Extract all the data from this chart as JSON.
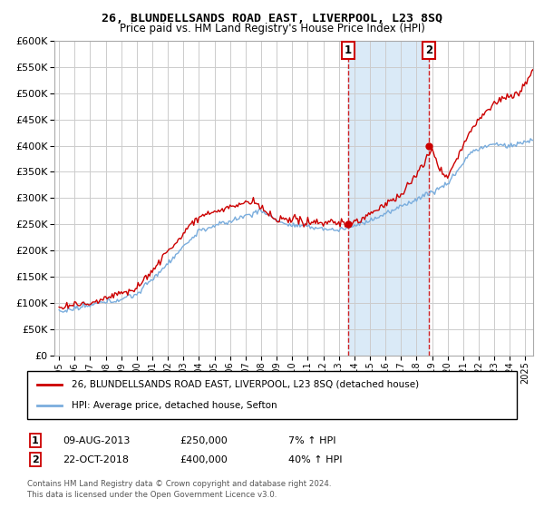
{
  "title": "26, BLUNDELLSANDS ROAD EAST, LIVERPOOL, L23 8SQ",
  "subtitle": "Price paid vs. HM Land Registry's House Price Index (HPI)",
  "legend_line1": "26, BLUNDELLSANDS ROAD EAST, LIVERPOOL, L23 8SQ (detached house)",
  "legend_line2": "HPI: Average price, detached house, Sefton",
  "annotation1_label": "1",
  "annotation1_date": "09-AUG-2013",
  "annotation1_price": "£250,000",
  "annotation1_hpi": "7% ↑ HPI",
  "annotation1_year": 2013.6,
  "annotation1_value": 250000,
  "annotation2_label": "2",
  "annotation2_date": "22-OCT-2018",
  "annotation2_price": "£400,000",
  "annotation2_hpi": "40% ↑ HPI",
  "annotation2_year": 2018.8,
  "annotation2_value": 400000,
  "footnote1": "Contains HM Land Registry data © Crown copyright and database right 2024.",
  "footnote2": "This data is licensed under the Open Government Licence v3.0.",
  "hpi_color": "#7aaddd",
  "price_color": "#cc0000",
  "dot_color": "#cc0000",
  "shade_color": "#daeaf7",
  "background_color": "#ffffff",
  "grid_color": "#cccccc",
  "ylim": [
    0,
    600000
  ],
  "yticks": [
    0,
    50000,
    100000,
    150000,
    200000,
    250000,
    300000,
    350000,
    400000,
    450000,
    500000,
    550000,
    600000
  ],
  "xlim_start": 1994.7,
  "xlim_end": 2025.5,
  "xticks": [
    1995,
    1996,
    1997,
    1998,
    1999,
    2000,
    2001,
    2002,
    2003,
    2004,
    2005,
    2006,
    2007,
    2008,
    2009,
    2010,
    2011,
    2012,
    2013,
    2014,
    2015,
    2016,
    2017,
    2018,
    2019,
    2020,
    2021,
    2022,
    2023,
    2024,
    2025
  ]
}
